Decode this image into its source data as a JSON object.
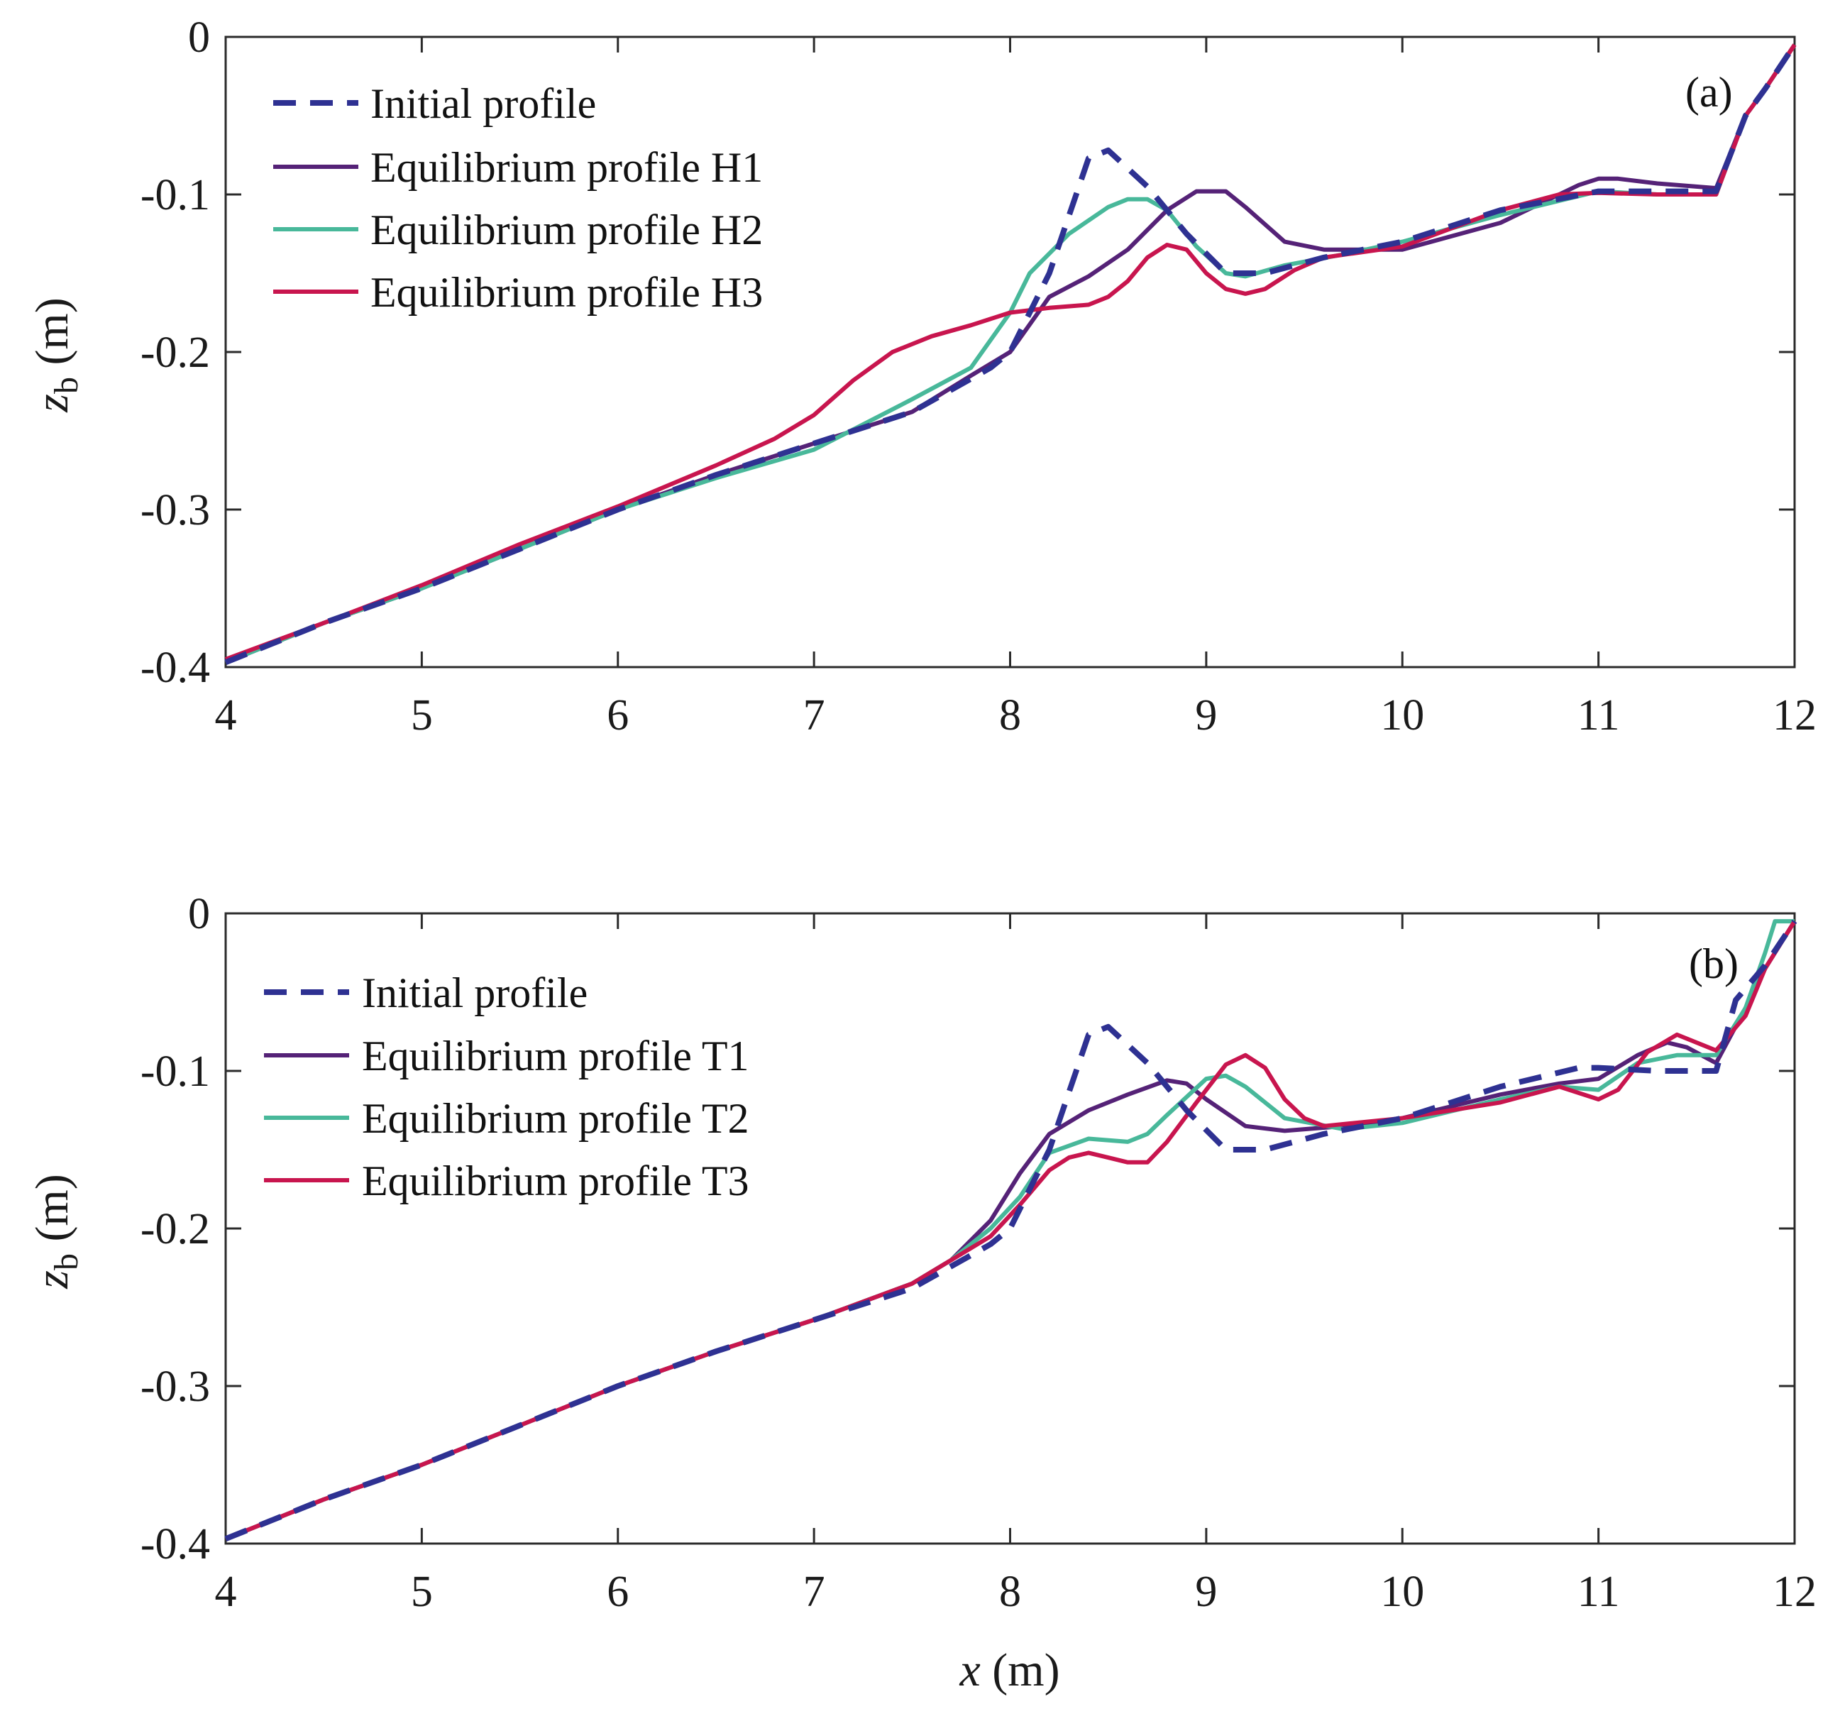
{
  "chart_data": [
    {
      "type": "line",
      "panel_label": "(a)",
      "xlabel": "x (m)",
      "ylabel": "z_b (m)",
      "xlim": [
        4,
        12
      ],
      "ylim": [
        -0.4,
        0
      ],
      "xticks": [
        4,
        5,
        6,
        7,
        8,
        9,
        10,
        11,
        12
      ],
      "yticks": [
        0,
        -0.1,
        -0.2,
        -0.3,
        -0.4
      ],
      "xtick_labels": [
        "4",
        "5",
        "6",
        "7",
        "8",
        "9",
        "10",
        "11",
        "12"
      ],
      "ytick_labels": [
        "0",
        "-0.1",
        "-0.2",
        "-0.3",
        "-0.4"
      ],
      "legend_position": "top-left",
      "series": [
        {
          "name": "Initial profile",
          "color": "#2e3192",
          "dash": true,
          "x": [
            4,
            4.5,
            5,
            5.5,
            6,
            6.5,
            7,
            7.5,
            7.9,
            8.0,
            8.2,
            8.4,
            8.5,
            8.7,
            8.9,
            9.1,
            9.3,
            9.6,
            10,
            10.5,
            11,
            11.3,
            11.6,
            11.75,
            11.85,
            12
          ],
          "y": [
            -0.397,
            -0.372,
            -0.35,
            -0.325,
            -0.3,
            -0.278,
            -0.258,
            -0.238,
            -0.21,
            -0.2,
            -0.15,
            -0.077,
            -0.072,
            -0.095,
            -0.125,
            -0.15,
            -0.15,
            -0.14,
            -0.13,
            -0.11,
            -0.098,
            -0.098,
            -0.098,
            -0.05,
            -0.033,
            -0.005
          ]
        },
        {
          "name": "Equilibrium profile H1",
          "color": "#552277",
          "dash": false,
          "x": [
            4,
            4.5,
            5,
            5.5,
            6,
            6.5,
            7,
            7.5,
            7.8,
            8.0,
            8.2,
            8.4,
            8.6,
            8.8,
            8.95,
            9.0,
            9.1,
            9.2,
            9.4,
            9.6,
            10,
            10.5,
            10.9,
            11.0,
            11.1,
            11.3,
            11.6,
            11.75,
            11.85,
            12
          ],
          "y": [
            -0.397,
            -0.372,
            -0.35,
            -0.325,
            -0.3,
            -0.278,
            -0.258,
            -0.238,
            -0.215,
            -0.2,
            -0.165,
            -0.152,
            -0.135,
            -0.11,
            -0.098,
            -0.098,
            -0.098,
            -0.108,
            -0.13,
            -0.135,
            -0.135,
            -0.118,
            -0.094,
            -0.09,
            -0.09,
            -0.093,
            -0.096,
            -0.05,
            -0.033,
            -0.005
          ]
        },
        {
          "name": "Equilibrium profile H2",
          "color": "#48b89a",
          "dash": false,
          "x": [
            4,
            4.5,
            5,
            5.5,
            6,
            6.5,
            7,
            7.5,
            7.8,
            8.0,
            8.1,
            8.3,
            8.5,
            8.6,
            8.7,
            8.8,
            8.95,
            9.1,
            9.2,
            9.4,
            9.7,
            10,
            10.5,
            11,
            11.3,
            11.6,
            11.75,
            11.85,
            12
          ],
          "y": [
            -0.397,
            -0.372,
            -0.35,
            -0.325,
            -0.3,
            -0.28,
            -0.262,
            -0.23,
            -0.21,
            -0.175,
            -0.15,
            -0.125,
            -0.108,
            -0.103,
            -0.103,
            -0.11,
            -0.133,
            -0.15,
            -0.152,
            -0.145,
            -0.138,
            -0.13,
            -0.113,
            -0.098,
            -0.1,
            -0.1,
            -0.05,
            -0.033,
            -0.005
          ]
        },
        {
          "name": "Equilibrium profile H3",
          "color": "#c8154e",
          "dash": false,
          "x": [
            4,
            4.5,
            5,
            5.5,
            6,
            6.5,
            6.8,
            7.0,
            7.2,
            7.4,
            7.6,
            7.8,
            8.0,
            8.2,
            8.4,
            8.5,
            8.6,
            8.7,
            8.8,
            8.9,
            9.0,
            9.1,
            9.2,
            9.3,
            9.45,
            9.6,
            10,
            10.5,
            10.8,
            11,
            11.3,
            11.6,
            11.75,
            11.85,
            12
          ],
          "y": [
            -0.395,
            -0.372,
            -0.348,
            -0.322,
            -0.298,
            -0.272,
            -0.255,
            -0.24,
            -0.218,
            -0.2,
            -0.19,
            -0.183,
            -0.175,
            -0.172,
            -0.17,
            -0.165,
            -0.155,
            -0.14,
            -0.132,
            -0.135,
            -0.15,
            -0.16,
            -0.163,
            -0.16,
            -0.148,
            -0.14,
            -0.133,
            -0.11,
            -0.1,
            -0.099,
            -0.1,
            -0.1,
            -0.05,
            -0.033,
            -0.005
          ]
        }
      ]
    },
    {
      "type": "line",
      "panel_label": "(b)",
      "xlabel": "x (m)",
      "ylabel": "z_b (m)",
      "xlim": [
        4,
        12
      ],
      "ylim": [
        -0.4,
        0
      ],
      "xticks": [
        4,
        5,
        6,
        7,
        8,
        9,
        10,
        11,
        12
      ],
      "yticks": [
        0,
        -0.1,
        -0.2,
        -0.3,
        -0.4
      ],
      "xtick_labels": [
        "4",
        "5",
        "6",
        "7",
        "8",
        "9",
        "10",
        "11",
        "12"
      ],
      "ytick_labels": [
        "0",
        "-0.1",
        "-0.2",
        "-0.3",
        "-0.4"
      ],
      "legend_position": "top-left",
      "series": [
        {
          "name": "Initial profile",
          "color": "#2e3192",
          "dash": true,
          "x": [
            4,
            4.5,
            5,
            5.5,
            6,
            6.5,
            7,
            7.5,
            7.9,
            8.0,
            8.2,
            8.4,
            8.5,
            8.7,
            8.9,
            9.1,
            9.3,
            9.6,
            10,
            10.5,
            10.9,
            11,
            11.3,
            11.6,
            11.7,
            11.85,
            12
          ],
          "y": [
            -0.397,
            -0.372,
            -0.35,
            -0.325,
            -0.3,
            -0.278,
            -0.258,
            -0.238,
            -0.21,
            -0.2,
            -0.15,
            -0.077,
            -0.072,
            -0.095,
            -0.125,
            -0.15,
            -0.15,
            -0.14,
            -0.13,
            -0.11,
            -0.098,
            -0.098,
            -0.1,
            -0.1,
            -0.055,
            -0.033,
            -0.005
          ]
        },
        {
          "name": "Equilibrium profile T1",
          "color": "#552277",
          "dash": false,
          "x": [
            4,
            4.5,
            5,
            5.5,
            6,
            6.5,
            7,
            7.5,
            7.7,
            7.9,
            8.05,
            8.2,
            8.4,
            8.6,
            8.8,
            8.9,
            9.0,
            9.2,
            9.4,
            9.7,
            10,
            10.5,
            10.8,
            11,
            11.2,
            11.35,
            11.45,
            11.6,
            11.75,
            11.85,
            12
          ],
          "y": [
            -0.397,
            -0.372,
            -0.35,
            -0.325,
            -0.3,
            -0.278,
            -0.258,
            -0.235,
            -0.22,
            -0.195,
            -0.165,
            -0.14,
            -0.125,
            -0.115,
            -0.106,
            -0.108,
            -0.118,
            -0.135,
            -0.138,
            -0.135,
            -0.13,
            -0.115,
            -0.108,
            -0.105,
            -0.09,
            -0.082,
            -0.085,
            -0.095,
            -0.06,
            -0.035,
            -0.005
          ]
        },
        {
          "name": "Equilibrium profile T2",
          "color": "#48b89a",
          "dash": false,
          "x": [
            4,
            4.5,
            5,
            5.5,
            6,
            6.5,
            7,
            7.5,
            7.7,
            7.9,
            8.05,
            8.2,
            8.4,
            8.6,
            8.7,
            8.8,
            9.0,
            9.1,
            9.2,
            9.4,
            9.7,
            10,
            10.5,
            10.8,
            11,
            11.2,
            11.4,
            11.6,
            11.75,
            11.85,
            11.9,
            12
          ],
          "y": [
            -0.397,
            -0.372,
            -0.35,
            -0.325,
            -0.3,
            -0.278,
            -0.258,
            -0.235,
            -0.22,
            -0.2,
            -0.18,
            -0.152,
            -0.143,
            -0.145,
            -0.14,
            -0.128,
            -0.105,
            -0.103,
            -0.11,
            -0.13,
            -0.137,
            -0.133,
            -0.118,
            -0.11,
            -0.112,
            -0.095,
            -0.09,
            -0.09,
            -0.06,
            -0.025,
            -0.005,
            -0.005
          ]
        },
        {
          "name": "Equilibrium profile T3",
          "color": "#c8154e",
          "dash": false,
          "x": [
            4,
            4.5,
            5,
            5.5,
            6,
            6.5,
            7,
            7.5,
            7.7,
            7.9,
            8.05,
            8.2,
            8.3,
            8.4,
            8.5,
            8.6,
            8.7,
            8.8,
            8.95,
            9.1,
            9.2,
            9.3,
            9.4,
            9.5,
            9.6,
            10,
            10.5,
            10.8,
            11,
            11.1,
            11.25,
            11.4,
            11.6,
            11.75,
            11.85,
            12
          ],
          "y": [
            -0.397,
            -0.372,
            -0.35,
            -0.325,
            -0.3,
            -0.278,
            -0.258,
            -0.235,
            -0.22,
            -0.205,
            -0.185,
            -0.163,
            -0.155,
            -0.152,
            -0.155,
            -0.158,
            -0.158,
            -0.145,
            -0.12,
            -0.096,
            -0.09,
            -0.098,
            -0.118,
            -0.13,
            -0.135,
            -0.13,
            -0.12,
            -0.11,
            -0.118,
            -0.112,
            -0.088,
            -0.077,
            -0.087,
            -0.065,
            -0.035,
            -0.005
          ]
        }
      ]
    }
  ]
}
